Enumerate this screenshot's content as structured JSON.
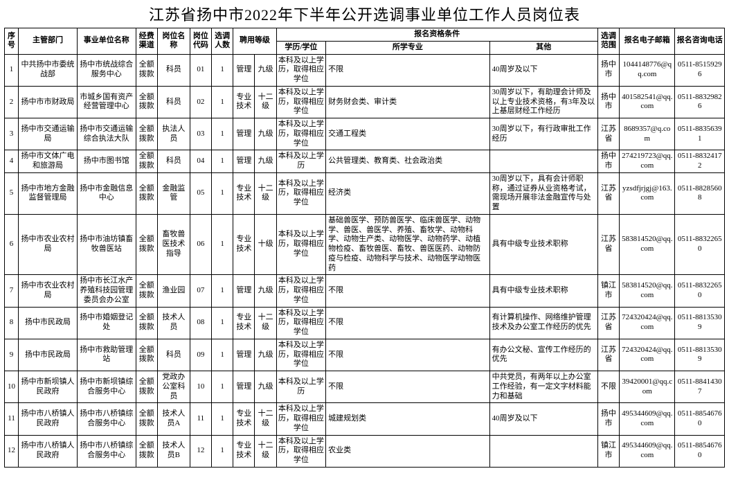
{
  "title": "江苏省扬中市2022年下半年公开选调事业单位工作人员岗位表",
  "headers": {
    "idx": "序号",
    "dept": "主管部门",
    "unit": "事业单位名称",
    "fund": "经费渠道",
    "post": "岗位名称",
    "code": "岗位代码",
    "num": "选调人数",
    "type_group": "聘用等级",
    "qual_group": "报名资格条件",
    "edu": "学历/学位",
    "major": "所学专业",
    "other": "其他",
    "scope": "选调范围",
    "email": "报名电子邮箱",
    "tel": "报名咨询电话"
  },
  "rows": [
    {
      "idx": "1",
      "dept": "中共扬中市委统战部",
      "unit": "扬中市统战综合服务中心",
      "fund": "全额拨款",
      "post": "科员",
      "code": "01",
      "num": "1",
      "type": "管理",
      "lvl": "九级",
      "edu": "本科及以上学历，取得相应学位",
      "major": "不限",
      "other": "40周岁及以下",
      "scope": "扬中市",
      "email": "1044148776@qq.com",
      "tel": "0511-85159296"
    },
    {
      "idx": "2",
      "dept": "扬中市市财政局",
      "unit": "市城乡国有资产经营管理中心",
      "fund": "全额拨款",
      "post": "科员",
      "code": "02",
      "num": "1",
      "type": "专业技术",
      "lvl": "十二级",
      "edu": "本科及以上学历，取得相应学位",
      "major": "财务财会类、审计类",
      "other": "30周岁以下，有助理会计师及以上专业技术资格，有3年及以上基层财经工作经历",
      "scope": "扬中市",
      "email": "401582541@qq.com",
      "tel": "0511-88329826"
    },
    {
      "idx": "3",
      "dept": "扬中市交通运输局",
      "unit": "扬中市交通运输综合执法大队",
      "fund": "全额拨款",
      "post": "执法人员",
      "code": "03",
      "num": "1",
      "type": "管理",
      "lvl": "九级",
      "edu": "本科及以上学历，取得相应学位",
      "major": "交通工程类",
      "other": "30周岁以下，有行政审批工作经历",
      "scope": "江苏省",
      "email": "8689357@q.com",
      "tel": "0511-88356391"
    },
    {
      "idx": "4",
      "dept": "扬中市文体广电和旅游局",
      "unit": "扬中市图书馆",
      "fund": "全额拨款",
      "post": "科员",
      "code": "04",
      "num": "1",
      "type": "管理",
      "lvl": "九级",
      "edu": "本科及以上学历",
      "major": "公共管理类、教育类、社会政治类",
      "other": "",
      "scope": "扬中市",
      "email": "274219723@qq.com",
      "tel": "0511-88324172"
    },
    {
      "idx": "5",
      "dept": "扬中市地方金融监督管理局",
      "unit": "扬中市金融信息中心",
      "fund": "全额拨款",
      "post": "金融监管",
      "code": "05",
      "num": "1",
      "type": "专业技术",
      "lvl": "十二级",
      "edu": "本科及以上学历，取得相应学位",
      "major": "经济类",
      "other": "30周岁以下，具有会计师职称，通过证券从业资格考试，需现场开展非法金融宣传与处置",
      "scope": "江苏省",
      "email": "yzsdfjrjgj@163.com",
      "tel": "0511-88285608"
    },
    {
      "idx": "6",
      "dept": "扬中市农业农村局",
      "unit": "扬中市油坊镇畜牧兽医站",
      "fund": "全额拨款",
      "post": "畜牧兽医技术指导",
      "code": "06",
      "num": "1",
      "type": "专业技术",
      "lvl": "十级",
      "edu": "本科及以上学历，取得相应学位",
      "major": "基础兽医学、预防兽医学、临床兽医学、动物学、兽医、兽医学、养殖、畜牧学、动物科学、动物生产类、动物医学、动物药学、动植物检疫、畜牧兽医、畜牧、兽医医药、动物防疫与检疫、动物科学与技术、动物医学动物医药",
      "other": "具有中级专业技术职称",
      "scope": "江苏省",
      "email": "583814520@qq.com",
      "tel": "0511-88322650"
    },
    {
      "idx": "7",
      "dept": "扬中市农业农村局",
      "unit": "扬中市长江水产养殖科技园管理委员会办公室",
      "fund": "全额拨款",
      "post": "渔业园",
      "code": "07",
      "num": "1",
      "type": "管理",
      "lvl": "九级",
      "edu": "本科及以上学历，取得相应学位",
      "major": "不限",
      "other": "具有中级专业技术职称",
      "scope": "镇江市",
      "email": "583814520@qq.com",
      "tel": "0511-88322650"
    },
    {
      "idx": "8",
      "dept": "扬中市民政局",
      "unit": "扬中市婚姻登记处",
      "fund": "全额拨款",
      "post": "技术人员",
      "code": "08",
      "num": "1",
      "type": "专业技术",
      "lvl": "十二级",
      "edu": "本科及以上学历，取得相应学位",
      "major": "不限",
      "other": "有计算机操作、网络维护管理技术及办公室工作经历的优先",
      "scope": "江苏省",
      "email": "724320424@qq.com",
      "tel": "0511-88135309"
    },
    {
      "idx": "9",
      "dept": "扬中市民政局",
      "unit": "扬中市救助管理站",
      "fund": "全额拨款",
      "post": "科员",
      "code": "09",
      "num": "1",
      "type": "管理",
      "lvl": "九级",
      "edu": "本科及以上学历，取得相应学位",
      "major": "不限",
      "other": "有办公文秘、宣传工作经历的优先",
      "scope": "江苏省",
      "email": "724320424@qq.com",
      "tel": "0511-88135309"
    },
    {
      "idx": "10",
      "dept": "扬中市新坝镇人民政府",
      "unit": "扬中市新坝镇综合服务中心",
      "fund": "全额拨款",
      "post": "党政办公室科员",
      "code": "10",
      "num": "1",
      "type": "管理",
      "lvl": "九级",
      "edu": "本科及以上学历",
      "major": "不限",
      "other": "中共党员，有两年以上办公室工作经验，有一定文字材料能力和基础",
      "scope": "不限",
      "email": "39420001@qq.com",
      "tel": "0511-88414307"
    },
    {
      "idx": "11",
      "dept": "扬中市八桥镇人民政府",
      "unit": "扬中市八桥镇综合服务中心",
      "fund": "全额拨款",
      "post": "技术人员A",
      "code": "11",
      "num": "1",
      "type": "专业技术",
      "lvl": "十二级",
      "edu": "本科及以上学历，取得相应学位",
      "major": "城建规划类",
      "other": "40周岁及以下",
      "scope": "扬中市",
      "email": "495344609@qq.com",
      "tel": "0511-88546760"
    },
    {
      "idx": "12",
      "dept": "扬中市八桥镇人民政府",
      "unit": "扬中市八桥镇综合服务中心",
      "fund": "全额拨款",
      "post": "技术人员B",
      "code": "12",
      "num": "1",
      "type": "专业技术",
      "lvl": "十二级",
      "edu": "本科及以上学历，取得相应学位",
      "major": "农业类",
      "other": "",
      "scope": "镇江市",
      "email": "495344609@qq.com",
      "tel": "0511-88546760"
    }
  ]
}
